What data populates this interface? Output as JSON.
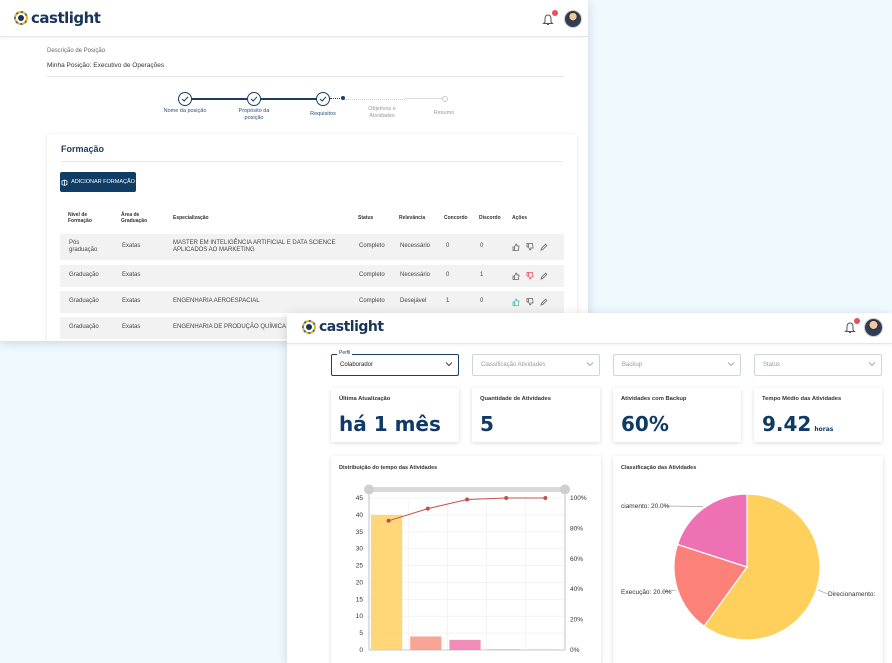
{
  "win1": {
    "brand": "castlight",
    "breadcrumb": "Descrição de Posição",
    "page_title": "Minha Posição: Executivo de Operações",
    "steps": [
      {
        "label": "Nome da posição",
        "done": true
      },
      {
        "label": "Propósito da posição",
        "done": true
      },
      {
        "label": "Requisitos",
        "done": true
      },
      {
        "label": "Objetivos e Atividades",
        "done": false
      },
      {
        "label": "Resumo",
        "done": false
      }
    ],
    "section_title": "Formação",
    "add_button": "ADICIONAR FORMAÇÃO",
    "columns": [
      "Nível de Formação",
      "Área de Graduação",
      "Especialização",
      "Status",
      "Relevância",
      "Concordo",
      "Discordo",
      "Ações"
    ],
    "rows": [
      {
        "nivel": "Pós graduação",
        "area": "Exatas",
        "esp": "MASTER EM INTELIGÊNCIA ARTIFICIAL E DATA SCIENCE APLICADOS AO MARKETING",
        "status": "Completo",
        "relevancia": "Necessário",
        "concordo": "0",
        "discordo": "0",
        "like": "none",
        "dislike": "none"
      },
      {
        "nivel": "Graduação",
        "area": "Exatas",
        "esp": "",
        "status": "Completo",
        "relevancia": "Necessário",
        "concordo": "0",
        "discordo": "1",
        "like": "none",
        "dislike": "red"
      },
      {
        "nivel": "Graduação",
        "area": "Exatas",
        "esp": "ENGENHARIA AEROESPACIAL",
        "status": "Completo",
        "relevancia": "Desejável",
        "concordo": "1",
        "discordo": "0",
        "like": "green",
        "dislike": "none"
      },
      {
        "nivel": "Graduação",
        "area": "Exatas",
        "esp": "ENGENHARIA DE PRODUÇÃO QUÍMICA",
        "status": "",
        "relevancia": "",
        "concordo": "",
        "discordo": "",
        "like": "none",
        "dislike": "none"
      }
    ]
  },
  "win2": {
    "brand": "castlight",
    "filters": [
      {
        "label": "Perfil",
        "value": "Colaborador"
      },
      {
        "label": "",
        "value": "Classificação Atividades"
      },
      {
        "label": "",
        "value": "Backup"
      },
      {
        "label": "",
        "value": "Status"
      }
    ],
    "kpis": [
      {
        "title": "Última Atualização",
        "value": "há 1 mês",
        "unit": ""
      },
      {
        "title": "Quantidade de Atividades",
        "value": "5",
        "unit": ""
      },
      {
        "title": "Atividades com Backup",
        "value": "60%",
        "unit": ""
      },
      {
        "title": "Tempo Médio das Atividades",
        "value": "9.42",
        "unit": "horas"
      }
    ],
    "chart1_title": "Distribuição do tempo das Atividades",
    "chart2_title": "Classificação das Atividades"
  },
  "colors": {
    "primary": "#103d66",
    "bar1": "#ffd36a",
    "bar2": "#f89b8a",
    "bar3": "#f07fb0",
    "pie_yellow": "#ffd15c",
    "pie_salmon": "#fb8179",
    "pie_pink": "#ee71b4"
  },
  "chart_data": [
    {
      "type": "bar",
      "title": "Distribuição do tempo das Atividades",
      "yticks_left": [
        "0",
        "5",
        "10",
        "15",
        "20",
        "25",
        "30",
        "35",
        "40",
        "45"
      ],
      "yticks_right": [
        "0%",
        "20%",
        "40%",
        "60%",
        "80%",
        "100%"
      ],
      "ylim": [
        0,
        45
      ],
      "values": [
        40,
        4,
        3,
        0.3,
        0.2
      ],
      "cumulative_pct": [
        85,
        93,
        99,
        100,
        100
      ]
    },
    {
      "type": "pie",
      "title": "Classificação das Atividades",
      "slices": [
        {
          "label": "Direcionamento:",
          "value": 60,
          "color": "#ffd15c"
        },
        {
          "label": "Execução: 20.0%",
          "value": 20,
          "color": "#fb8179"
        },
        {
          "label": "ciamento: 20.0%",
          "value": 20,
          "color": "#ee71b4"
        }
      ]
    }
  ]
}
